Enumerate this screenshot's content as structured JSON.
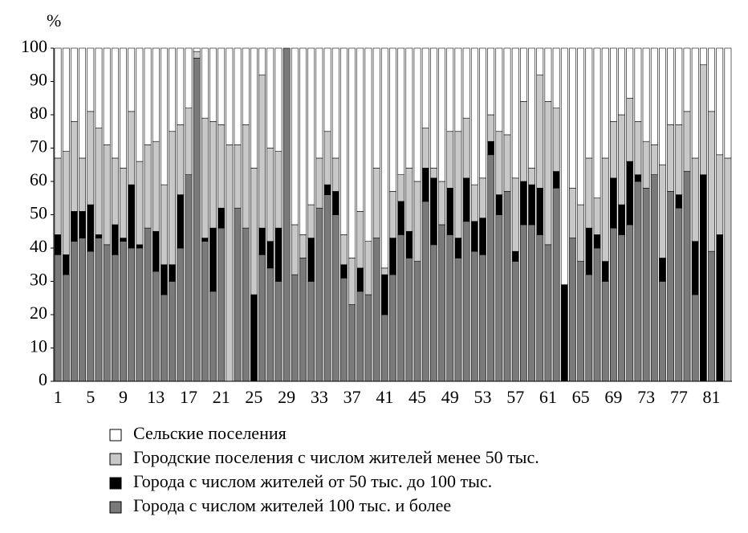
{
  "chart_data": {
    "type": "stacked_bar",
    "y_label": "%",
    "categories": [
      "1",
      null,
      null,
      null,
      "5",
      null,
      null,
      null,
      "9",
      null,
      null,
      null,
      "13",
      null,
      null,
      null,
      "17",
      null,
      null,
      null,
      "21",
      null,
      null,
      null,
      "25",
      null,
      null,
      null,
      "29",
      null,
      null,
      null,
      "33",
      null,
      null,
      null,
      "37",
      null,
      null,
      null,
      "41",
      null,
      null,
      null,
      "45",
      null,
      null,
      null,
      "49",
      null,
      null,
      null,
      "53",
      null,
      null,
      null,
      "57",
      null,
      null,
      null,
      "61",
      null,
      null,
      null,
      "65",
      null,
      null,
      null,
      "69",
      null,
      null,
      null,
      "73",
      null,
      null,
      null,
      "77",
      null,
      null,
      null,
      "81",
      null,
      null
    ],
    "series": [
      {
        "name": "Сельские поселения",
        "color": "#ffffff",
        "values": [
          33,
          31,
          22,
          33,
          19,
          24,
          29,
          33,
          36,
          19,
          34,
          29,
          28,
          41,
          25,
          23,
          18,
          1,
          21,
          22,
          23,
          29,
          29,
          23,
          36,
          8,
          30,
          31,
          0,
          53,
          56,
          47,
          33,
          25,
          33,
          56,
          63,
          49,
          58,
          36,
          66,
          43,
          38,
          36,
          40,
          24,
          36,
          40,
          25,
          25,
          21,
          41,
          39,
          20,
          25,
          26,
          39,
          16,
          36,
          8,
          16,
          18,
          71,
          42,
          47,
          33,
          45,
          33,
          22,
          20,
          15,
          22,
          28,
          29,
          35,
          23,
          23,
          19,
          33,
          5,
          19,
          32,
          33
        ]
      },
      {
        "name": "Городские поселения с числом жителей менее 50 тыс.",
        "color": "#c8c8c8",
        "values": [
          23,
          31,
          27,
          16,
          28,
          32,
          30,
          20,
          21,
          22,
          25,
          25,
          27,
          24,
          40,
          21,
          20,
          2,
          36,
          32,
          25,
          71,
          19,
          31,
          38,
          46,
          28,
          23,
          0,
          15,
          7,
          10,
          15,
          16,
          10,
          9,
          14,
          17,
          16,
          21,
          2,
          14,
          8,
          19,
          24,
          12,
          3,
          13,
          17,
          32,
          18,
          11,
          12,
          8,
          19,
          17,
          22,
          24,
          5,
          34,
          43,
          19,
          0,
          15,
          17,
          21,
          11,
          31,
          17,
          27,
          19,
          16,
          14,
          9,
          28,
          20,
          21,
          18,
          25,
          33,
          42,
          24,
          67
        ]
      },
      {
        "name": "Города с числом жителей от 50 тыс. до 100 тыс.",
        "color": "#000000",
        "values": [
          6,
          6,
          9,
          8,
          14,
          1,
          0,
          9,
          1,
          19,
          1,
          0,
          12,
          9,
          5,
          16,
          0,
          0,
          1,
          19,
          6,
          0,
          0,
          0,
          26,
          8,
          8,
          16,
          0,
          0,
          0,
          13,
          0,
          3,
          7,
          4,
          0,
          7,
          0,
          0,
          12,
          11,
          10,
          8,
          0,
          10,
          20,
          0,
          14,
          6,
          13,
          9,
          11,
          4,
          6,
          0,
          3,
          13,
          12,
          14,
          0,
          5,
          29,
          0,
          0,
          14,
          4,
          6,
          15,
          9,
          19,
          2,
          0,
          0,
          7,
          0,
          4,
          0,
          16,
          62,
          0,
          44,
          0
        ]
      },
      {
        "name": "Города с числом жителей 100 тыс. и более",
        "color": "#7a7a7a",
        "values": [
          38,
          32,
          42,
          43,
          39,
          43,
          41,
          38,
          42,
          40,
          40,
          46,
          33,
          26,
          30,
          40,
          62,
          97,
          42,
          27,
          46,
          0,
          52,
          46,
          0,
          38,
          34,
          30,
          100,
          32,
          37,
          30,
          52,
          56,
          50,
          31,
          23,
          27,
          26,
          43,
          20,
          32,
          44,
          37,
          36,
          54,
          41,
          47,
          44,
          37,
          48,
          39,
          38,
          68,
          50,
          57,
          36,
          47,
          47,
          44,
          41,
          58,
          0,
          43,
          36,
          32,
          40,
          30,
          46,
          44,
          47,
          60,
          58,
          62,
          30,
          57,
          52,
          63,
          26,
          0,
          39,
          0,
          0
        ]
      }
    ],
    "ylim": [
      0,
      100
    ],
    "yticks": [
      0,
      10,
      20,
      30,
      40,
      50,
      60,
      70,
      80,
      90,
      100
    ],
    "grid": false
  }
}
